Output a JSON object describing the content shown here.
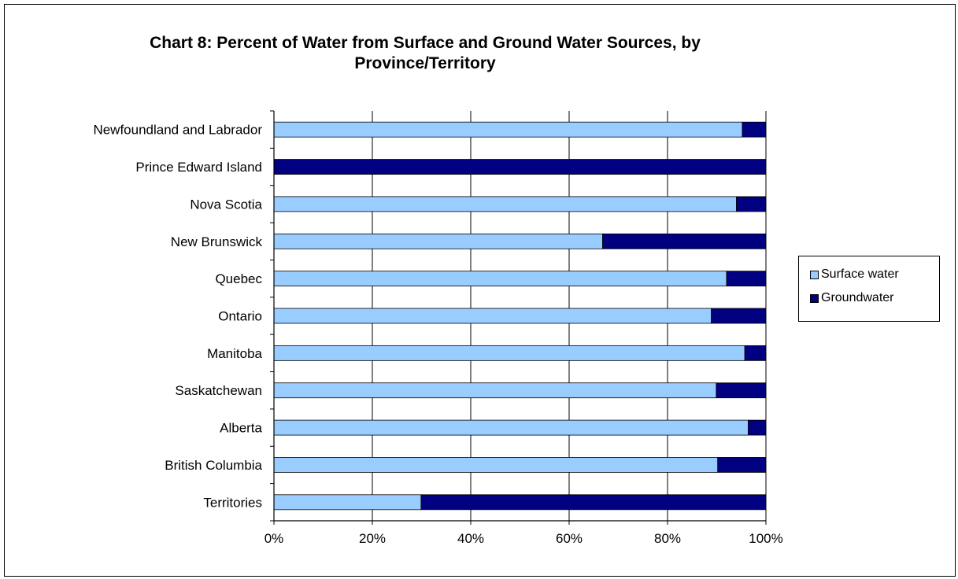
{
  "chart_data": {
    "type": "bar",
    "orientation": "horizontal",
    "stacked": "percent",
    "title": "Chart 8: Percent of Water from Surface and Ground Water Sources, by Province/Territory",
    "categories": [
      "Newfoundland and Labrador",
      "Prince Edward Island",
      "Nova Scotia",
      "New Brunswick",
      "Quebec",
      "Ontario",
      "Manitoba",
      "Saskatchewan",
      "Alberta",
      "British Columbia",
      "Territories"
    ],
    "series": [
      {
        "name": "Surface water",
        "color": "#99CCFF",
        "values": [
          95.2,
          0,
          94.0,
          66.8,
          92.0,
          88.9,
          95.7,
          89.9,
          96.4,
          90.2,
          29.9
        ]
      },
      {
        "name": "Groundwater",
        "color": "#000080",
        "values": [
          4.8,
          100,
          6.0,
          33.2,
          8.0,
          11.1,
          4.3,
          10.1,
          3.6,
          9.8,
          70.1
        ]
      }
    ],
    "xlim": [
      0,
      100
    ],
    "x_ticks": [
      "0%",
      "20%",
      "40%",
      "60%",
      "80%",
      "100%"
    ],
    "grid": true,
    "legend_position": "right"
  }
}
